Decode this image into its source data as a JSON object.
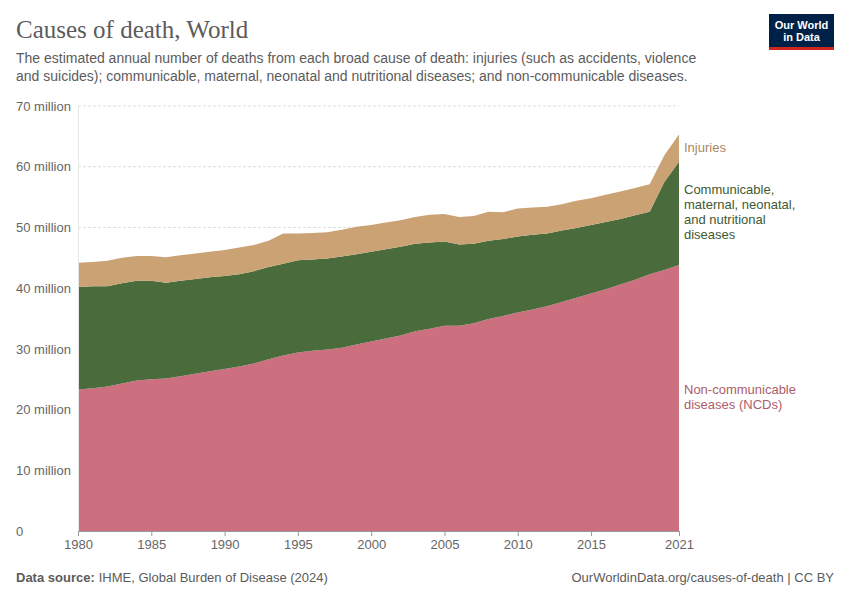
{
  "chart_data": {
    "type": "area",
    "title": "Causes of death, World",
    "subtitle": "The estimated annual number of deaths from each broad cause of death: injuries (such as accidents, violence and suicides); communicable, maternal, neonatal and nutritional diseases; and non-communicable diseases.",
    "source_label": "Data source:",
    "source": "IHME, Global Burden of Disease (2024)",
    "credit": "OurWorldinData.org/causes-of-death | CC BY",
    "logo": [
      "Our World",
      "in Data"
    ],
    "stacked": true,
    "grid": true,
    "legend": "right",
    "x": [
      1980,
      1981,
      1982,
      1983,
      1984,
      1985,
      1986,
      1987,
      1988,
      1989,
      1990,
      1991,
      1992,
      1993,
      1994,
      1995,
      1996,
      1997,
      1998,
      1999,
      2000,
      2001,
      2002,
      2003,
      2004,
      2005,
      2006,
      2007,
      2008,
      2009,
      2010,
      2011,
      2012,
      2013,
      2014,
      2015,
      2016,
      2017,
      2018,
      2019,
      2020,
      2021
    ],
    "xlim": [
      1980,
      2021
    ],
    "xticks": [
      1980,
      1985,
      1990,
      1995,
      2000,
      2005,
      2010,
      2015,
      2021
    ],
    "ylim": [
      0,
      70
    ],
    "yticks": [
      0,
      {
        "value": 10,
        "label": "10 million"
      },
      {
        "value": 20,
        "label": "20 million"
      },
      {
        "value": 30,
        "label": "30 million"
      },
      {
        "value": 40,
        "label": "40 million"
      },
      {
        "value": 50,
        "label": "50 million"
      },
      {
        "value": 60,
        "label": "60 million"
      },
      {
        "value": 70,
        "label": "70 million"
      }
    ],
    "series": [
      {
        "name": "Non-communicable diseases (NCDs)",
        "color": "#cc6f7f",
        "values": [
          23.3,
          23.5,
          23.8,
          24.3,
          24.8,
          25.0,
          25.1,
          25.5,
          25.9,
          26.3,
          26.7,
          27.1,
          27.6,
          28.3,
          28.9,
          29.4,
          29.7,
          29.9,
          30.2,
          30.7,
          31.2,
          31.7,
          32.2,
          32.9,
          33.3,
          33.8,
          33.8,
          34.2,
          34.9,
          35.4,
          36.0,
          36.5,
          37.0,
          37.7,
          38.4,
          39.1,
          39.8,
          40.6,
          41.4,
          42.3,
          43.0,
          43.8
        ]
      },
      {
        "name": "Communicable, maternal, neonatal, and nutritional diseases",
        "color": "#4a6b3c",
        "values": [
          16.9,
          16.8,
          16.5,
          16.5,
          16.4,
          16.2,
          15.8,
          15.7,
          15.6,
          15.5,
          15.3,
          15.2,
          15.2,
          15.2,
          15.1,
          15.2,
          15.0,
          15.0,
          15.0,
          14.9,
          14.8,
          14.7,
          14.6,
          14.4,
          14.2,
          13.9,
          13.4,
          13.1,
          12.9,
          12.7,
          12.5,
          12.3,
          12.0,
          11.8,
          11.5,
          11.3,
          11.1,
          10.8,
          10.6,
          10.3,
          14.5,
          17.0
        ]
      },
      {
        "name": "Injuries",
        "color": "#caa274",
        "values": [
          4.0,
          4.0,
          4.2,
          4.2,
          4.1,
          4.1,
          4.2,
          4.2,
          4.2,
          4.2,
          4.3,
          4.4,
          4.3,
          4.3,
          5.0,
          4.4,
          4.4,
          4.3,
          4.4,
          4.5,
          4.4,
          4.4,
          4.4,
          4.4,
          4.6,
          4.5,
          4.5,
          4.6,
          4.8,
          4.4,
          4.6,
          4.5,
          4.4,
          4.3,
          4.5,
          4.4,
          4.5,
          4.5,
          4.5,
          4.5,
          4.4,
          4.5
        ]
      }
    ]
  }
}
